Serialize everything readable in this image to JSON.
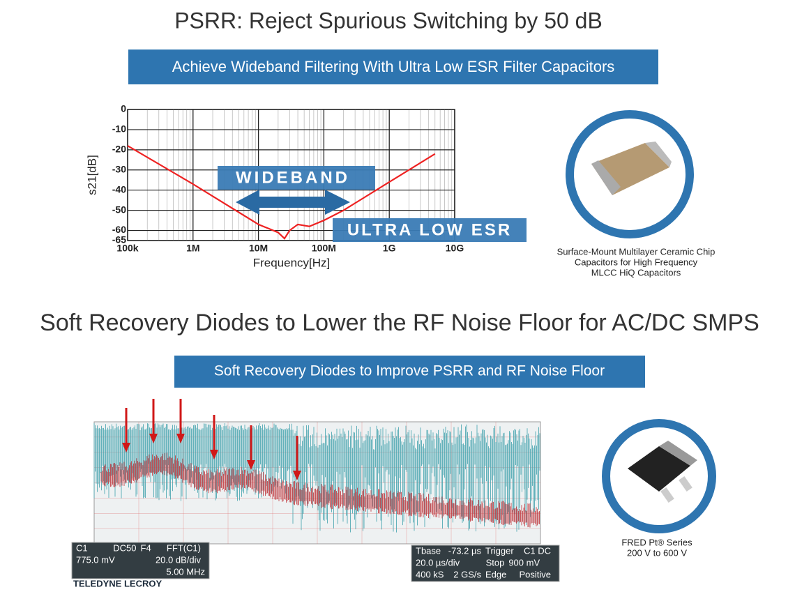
{
  "title_1": "PSRR: Reject Spurious Switching by 50 dB",
  "banner_1": "Achieve Wideband Filtering With Ultra Low ESR Filter Capacitors",
  "chart_data": {
    "type": "line",
    "x_label": "Frequency[Hz]",
    "y_label": "s21[dB]",
    "x_log": true,
    "grid": true,
    "x": [
      100000,
      1000000,
      10000000,
      20000000,
      25000000,
      30000000,
      40000000,
      60000000,
      100000000,
      200000000,
      1000000000,
      5000000000
    ],
    "series": [
      {
        "color": "#ee2222",
        "values": [
          -18,
          -37,
          -57,
          -61,
          -64,
          -60,
          -57,
          -58,
          -55,
          -50,
          -36,
          -22
        ]
      }
    ],
    "xlim": [
      100000,
      10000000000
    ],
    "xticks": [
      {
        "value": 100000,
        "label": "100k"
      },
      {
        "value": 1000000,
        "label": "1M"
      },
      {
        "value": 10000000,
        "label": "10M"
      },
      {
        "value": 100000000,
        "label": "100M"
      },
      {
        "value": 1000000000,
        "label": "1G"
      },
      {
        "value": 10000000000,
        "label": "10G"
      }
    ],
    "ylim": [
      -65,
      0
    ],
    "yticks": [
      0,
      -10,
      -20,
      -30,
      -40,
      -50,
      -60,
      -65
    ],
    "annotations": [
      "WIDEBAND",
      "ULTRA LOW ESR"
    ]
  },
  "capacitor_caption": [
    "Surface-Mount Multilayer Ceramic Chip",
    "Capacitors for High Frequency",
    "MLCC HiQ Capacitors"
  ],
  "title_2": "Soft Recovery Diodes to Lower the RF Noise Floor for AC/DC SMPS",
  "banner_2": "Soft Recovery Diodes to Improve PSRR and RF Noise Floor",
  "scope": {
    "left_panel": [
      [
        "C1",
        "DC50",
        "F4",
        "FFT(C1)"
      ],
      [
        "775.0 mV",
        "20.0 dB/div"
      ],
      [
        "5.00 MHz"
      ]
    ],
    "right_panel": [
      [
        "Tbase",
        "-73.2 µs",
        "Trigger",
        "C1 DC"
      ],
      [
        "20.0 µs/div",
        "Stop",
        "900 mV"
      ],
      [
        "400 kS",
        "2 GS/s",
        "Edge",
        "Positive"
      ]
    ],
    "logo": "TELEDYNE LECROY"
  },
  "diode_caption": [
    "FRED Pt® Series",
    "200 V to 600 V"
  ]
}
